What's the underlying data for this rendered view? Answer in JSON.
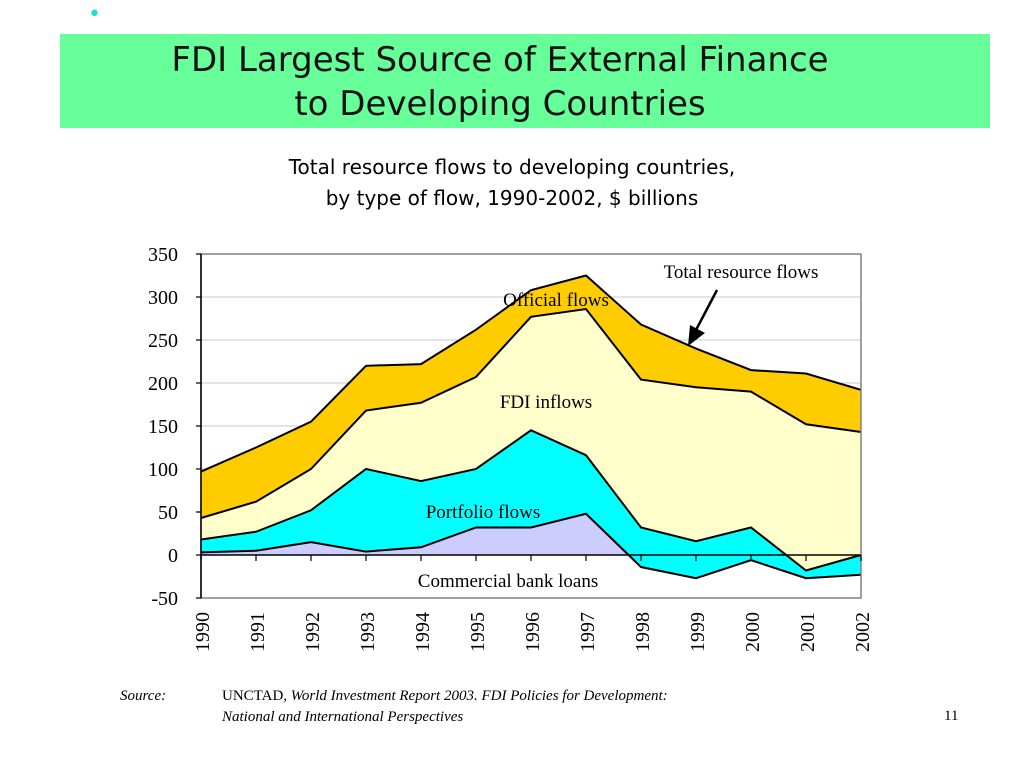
{
  "slide": {
    "title_line1": "FDI Largest Source of External Finance",
    "title_line2": "to Developing Countries",
    "subtitle_line1": "Total resource flows to developing countries,",
    "subtitle_line2": "by type of flow, 1990-2002, $ billions",
    "source_label": "Source:",
    "source_plain": "UNCTAD",
    "source_italic_1": ", World Investment Report 2003.  FDI Policies for Development:",
    "source_italic_2": "National and International Perspectives",
    "page_number": "11",
    "colors": {
      "title_band": "#66ff99",
      "bullet": "#1ae0d0"
    }
  },
  "chart_data": {
    "type": "area",
    "stacked": true,
    "categories": [
      "1990",
      "1991",
      "1992",
      "1993",
      "1994",
      "1995",
      "1996",
      "1997",
      "1998",
      "1999",
      "2000",
      "2001",
      "2002"
    ],
    "ylim": [
      -50,
      350
    ],
    "yticks": [
      350,
      300,
      250,
      200,
      150,
      100,
      50,
      0,
      -50
    ],
    "grid": true,
    "boundaries": {
      "commercial_bank_loans": [
        3,
        5,
        15,
        4,
        9,
        32,
        32,
        48,
        -14,
        -27,
        -6,
        -27,
        -23
      ],
      "portfolio_top": [
        18,
        27,
        52,
        100,
        86,
        100,
        145,
        116,
        32,
        16,
        32,
        -18,
        0
      ],
      "fdi_top": [
        43,
        62,
        100,
        168,
        177,
        207,
        277,
        286,
        204,
        195,
        190,
        152,
        143
      ],
      "total": [
        97,
        125,
        155,
        220,
        222,
        262,
        308,
        325,
        268,
        240,
        215,
        211,
        192
      ]
    },
    "layers": [
      {
        "name": "Commercial bank loans",
        "color": "#ccccff"
      },
      {
        "name": "Portfolio flows",
        "color": "#00ffff"
      },
      {
        "name": "FDI inflows",
        "color": "#ffffcc"
      },
      {
        "name": "Official flows",
        "color": "#ffcc00"
      }
    ],
    "annotations": {
      "total_label": "Total resource flows",
      "official_label": "Official flows",
      "fdi_label": "FDI inflows",
      "portfolio_label": "Portfolio flows",
      "bank_label": "Commercial bank loans"
    }
  }
}
